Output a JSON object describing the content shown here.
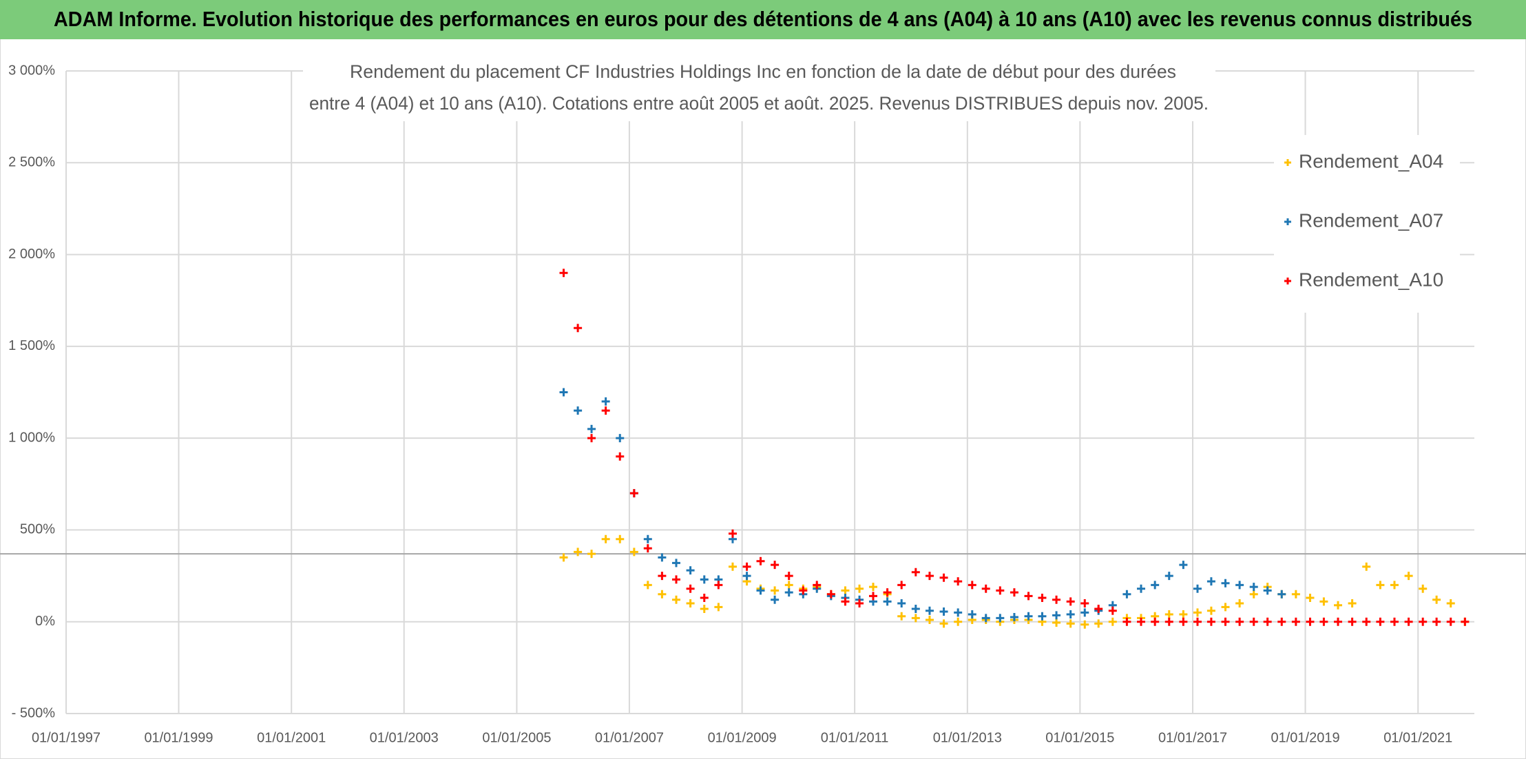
{
  "chart_data": {
    "type": "scatter",
    "banner": "ADAM Informe. Evolution historique des performances en euros pour des détentions de 4 ans (A04) à 10 ans (A10) avec les revenus connus distribués",
    "title": "Rendement du placement CF Industries Holdings Inc en fonction de la date de début pour des durées",
    "subtitle": "entre 4 (A04) et 10 ans (A10). Cotations entre août 2005 et août. 2025. Revenus DISTRIBUES depuis nov. 2005.",
    "x": [
      "2005-11-01",
      "2006-02-01",
      "2006-05-01",
      "2006-08-01",
      "2006-11-01",
      "2007-02-01",
      "2007-05-01",
      "2007-08-01",
      "2007-11-01",
      "2008-02-01",
      "2008-05-01",
      "2008-08-01",
      "2008-11-01",
      "2009-02-01",
      "2009-05-01",
      "2009-08-01",
      "2009-11-01",
      "2010-02-01",
      "2010-05-01",
      "2010-08-01",
      "2010-11-01",
      "2011-02-01",
      "2011-05-01",
      "2011-08-01",
      "2011-11-01",
      "2012-02-01",
      "2012-05-01",
      "2012-08-01",
      "2012-11-01",
      "2013-02-01",
      "2013-05-01",
      "2013-08-01",
      "2013-11-01",
      "2014-02-01",
      "2014-05-01",
      "2014-08-01",
      "2014-11-01",
      "2015-02-01",
      "2015-05-01",
      "2015-08-01",
      "2015-11-01",
      "2016-02-01",
      "2016-05-01",
      "2016-08-01",
      "2016-11-01",
      "2017-02-01",
      "2017-05-01",
      "2017-08-01",
      "2017-11-01",
      "2018-02-01",
      "2018-05-01",
      "2018-08-01",
      "2018-11-01",
      "2019-02-01",
      "2019-05-01",
      "2019-08-01",
      "2019-11-01",
      "2020-02-01",
      "2020-05-01",
      "2020-08-01",
      "2020-11-01",
      "2021-02-01",
      "2021-05-01",
      "2021-08-01",
      "2021-11-01"
    ],
    "series": [
      {
        "name": "Rendement_A04",
        "color": "#ffc000",
        "values": [
          350,
          380,
          370,
          450,
          450,
          380,
          200,
          150,
          120,
          100,
          70,
          80,
          300,
          220,
          180,
          170,
          200,
          180,
          190,
          150,
          170,
          180,
          190,
          150,
          30,
          20,
          10,
          -10,
          0,
          10,
          10,
          0,
          10,
          10,
          0,
          -5,
          -10,
          -15,
          -10,
          0,
          20,
          20,
          30,
          40,
          40,
          50,
          60,
          80,
          100,
          150,
          190,
          150,
          150,
          130,
          110,
          90,
          100,
          300,
          200,
          200,
          250,
          180,
          120,
          100,
          0
        ]
      },
      {
        "name": "Rendement_A07",
        "color": "#1f77b4",
        "values": [
          1250,
          1150,
          1050,
          1200,
          1000,
          700,
          450,
          350,
          320,
          280,
          230,
          230,
          450,
          250,
          170,
          120,
          160,
          150,
          180,
          140,
          130,
          120,
          110,
          110,
          100,
          70,
          60,
          55,
          50,
          40,
          20,
          20,
          25,
          30,
          30,
          35,
          40,
          50,
          60,
          90,
          150,
          180,
          200,
          250,
          310,
          180,
          220,
          210,
          200,
          190,
          170,
          150,
          null,
          null,
          null,
          null,
          null,
          null,
          null,
          null,
          null,
          null,
          null,
          null,
          null
        ]
      },
      {
        "name": "Rendement_A10",
        "color": "#ff0000",
        "values": [
          1900,
          1600,
          1000,
          1150,
          900,
          700,
          400,
          250,
          230,
          180,
          130,
          200,
          480,
          300,
          330,
          310,
          250,
          170,
          200,
          150,
          110,
          100,
          140,
          160,
          200,
          270,
          250,
          240,
          220,
          200,
          180,
          170,
          160,
          140,
          130,
          120,
          110,
          100,
          70,
          60,
          0,
          0,
          0,
          0,
          0,
          0,
          0,
          0,
          0,
          0,
          0,
          0,
          0,
          0,
          0,
          0,
          0,
          0,
          0,
          0,
          0,
          0,
          0,
          0,
          0
        ]
      }
    ],
    "xlim": [
      "1997-01-01",
      "2022-01-01"
    ],
    "xticks": [
      {
        "value": "1997-01-01",
        "label": "01/01/1997"
      },
      {
        "value": "1999-01-01",
        "label": "01/01/1999"
      },
      {
        "value": "2001-01-01",
        "label": "01/01/2001"
      },
      {
        "value": "2003-01-01",
        "label": "01/01/2003"
      },
      {
        "value": "2005-01-01",
        "label": "01/01/2005"
      },
      {
        "value": "2007-01-01",
        "label": "01/01/2007"
      },
      {
        "value": "2009-01-01",
        "label": "01/01/2009"
      },
      {
        "value": "2011-01-01",
        "label": "01/01/2011"
      },
      {
        "value": "2013-01-01",
        "label": "01/01/2013"
      },
      {
        "value": "2015-01-01",
        "label": "01/01/2015"
      },
      {
        "value": "2017-01-01",
        "label": "01/01/2017"
      },
      {
        "value": "2019-01-01",
        "label": "01/01/2019"
      },
      {
        "value": "2021-01-01",
        "label": "01/01/2021"
      }
    ],
    "ylim": [
      -500,
      3000
    ],
    "yticks": [
      {
        "value": -500,
        "label": "- 500%"
      },
      {
        "value": 0,
        "label": "0%"
      },
      {
        "value": 500,
        "label": "500%"
      },
      {
        "value": 1000,
        "label": "1 000%"
      },
      {
        "value": 1500,
        "label": "1 500%"
      },
      {
        "value": 2000,
        "label": "2 000%"
      },
      {
        "value": 2500,
        "label": "2 500%"
      },
      {
        "value": 3000,
        "label": "3 000%"
      }
    ],
    "reference_line": 370,
    "grid": true,
    "legend": "top-right"
  }
}
